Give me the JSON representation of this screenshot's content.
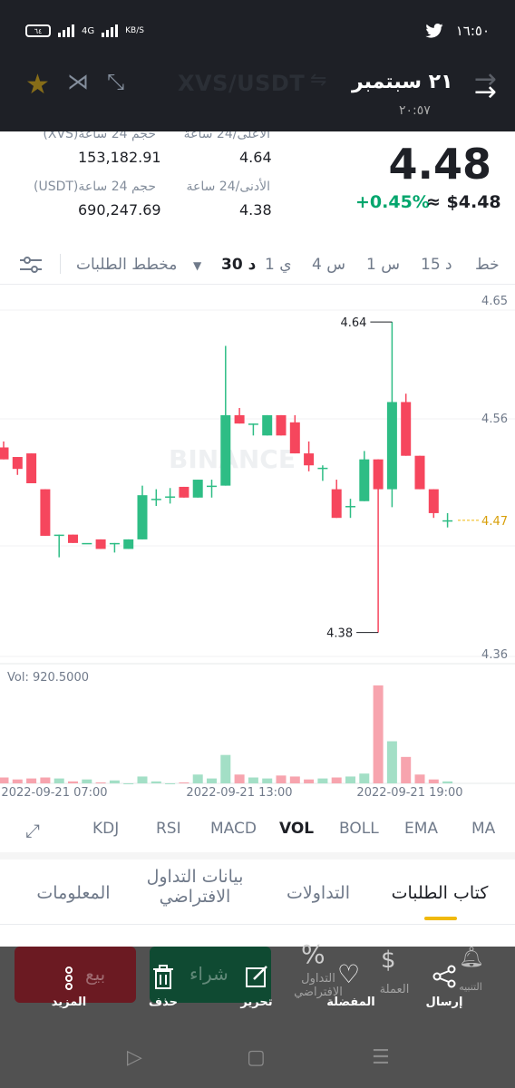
{
  "status_bar": {
    "battery": "٦٤",
    "network": "4G",
    "speed_unit": "KB/S",
    "time": "١٦:٥٠"
  },
  "header": {
    "pair": "XVS/USDT",
    "date": "٢١ سبتمبر",
    "time": "٢٠:٥٧"
  },
  "stats": {
    "high_label": "الأعلى/24 ساعة",
    "high_value": "4.64",
    "low_label": "الأدنى/24 ساعة",
    "low_value": "4.38",
    "vol_xvs_label": "حجم 24 ساعة(XVS)",
    "vol_xvs_value": "153,182.91",
    "vol_usdt_label": "حجم 24 ساعة(USDT)",
    "vol_usdt_value": "690,247.69",
    "price": "4.48",
    "change": "+0.45%",
    "usd_value": "≈ $4.48"
  },
  "interval_tabs": {
    "line": "خط",
    "m15": "15 د",
    "h1": "1 س",
    "h4": "4 س",
    "d1": "1 ي",
    "m30": "30 د",
    "depth": "مخطط الطلبات"
  },
  "chart_data": {
    "type": "candlestick",
    "y_ticks": [
      "4.65",
      "4.56",
      "4.47",
      "4.36"
    ],
    "current_price_label": "4.47",
    "high_marker": "4.64",
    "low_marker": "4.38",
    "x_ticks": [
      "2022-09-21 07:00",
      "2022-09-21 13:00",
      "2022-09-21 19:00"
    ],
    "volume_label": "Vol: 920.5000",
    "watermark": "BINANCE",
    "colors": {
      "up": "#2ebd85",
      "down": "#f6465d",
      "vol_up": "#a3dfc6",
      "vol_down": "#f7a4ae"
    },
    "candles": [
      {
        "o": 4.535,
        "c": 4.525,
        "h": 4.54,
        "l": 4.525
      },
      {
        "o": 4.527,
        "c": 4.517,
        "h": 4.527,
        "l": 4.512
      },
      {
        "o": 4.53,
        "c": 4.505,
        "h": 4.53,
        "l": 4.505
      },
      {
        "o": 4.5,
        "c": 4.461,
        "h": 4.5,
        "l": 4.461
      },
      {
        "o": 4.462,
        "c": 4.462,
        "h": 4.462,
        "l": 4.443
      },
      {
        "o": 4.462,
        "c": 4.455,
        "h": 4.462,
        "l": 4.455
      },
      {
        "o": 4.455,
        "c": 4.455,
        "h": 4.455,
        "l": 4.455
      },
      {
        "o": 4.458,
        "c": 4.45,
        "h": 4.458,
        "l": 4.45
      },
      {
        "o": 4.455,
        "c": 4.455,
        "h": 4.455,
        "l": 4.447
      },
      {
        "o": 4.45,
        "c": 4.458,
        "h": 4.458,
        "l": 4.45
      },
      {
        "o": 4.458,
        "c": 4.495,
        "h": 4.503,
        "l": 4.458
      },
      {
        "o": 4.492,
        "c": 4.492,
        "h": 4.5,
        "l": 4.486
      },
      {
        "o": 4.494,
        "c": 4.494,
        "h": 4.501,
        "l": 4.488
      },
      {
        "o": 4.502,
        "c": 4.493,
        "h": 4.502,
        "l": 4.493
      },
      {
        "o": 4.493,
        "c": 4.508,
        "h": 4.508,
        "l": 4.493
      },
      {
        "o": 4.503,
        "c": 4.503,
        "h": 4.508,
        "l": 4.493
      },
      {
        "o": 4.503,
        "c": 4.562,
        "h": 4.62,
        "l": 4.503
      },
      {
        "o": 4.562,
        "c": 4.555,
        "h": 4.568,
        "l": 4.555
      },
      {
        "o": 4.555,
        "c": 4.555,
        "h": 4.555,
        "l": 4.545
      },
      {
        "o": 4.545,
        "c": 4.562,
        "h": 4.562,
        "l": 4.545
      },
      {
        "o": 4.562,
        "c": 4.545,
        "h": 4.562,
        "l": 4.545
      },
      {
        "o": 4.556,
        "c": 4.53,
        "h": 4.562,
        "l": 4.53
      },
      {
        "o": 4.53,
        "c": 4.52,
        "h": 4.54,
        "l": 4.515
      },
      {
        "o": 4.518,
        "c": 4.518,
        "h": 4.52,
        "l": 4.507
      },
      {
        "o": 4.5,
        "c": 4.476,
        "h": 4.508,
        "l": 4.476
      },
      {
        "o": 4.486,
        "c": 4.486,
        "h": 4.492,
        "l": 4.476
      },
      {
        "o": 4.49,
        "c": 4.525,
        "h": 4.532,
        "l": 4.49
      },
      {
        "o": 4.525,
        "c": 4.5,
        "h": 4.525,
        "l": 4.38
      },
      {
        "o": 4.5,
        "c": 4.573,
        "h": 4.64,
        "l": 4.485
      },
      {
        "o": 4.573,
        "c": 4.528,
        "h": 4.58,
        "l": 4.528
      },
      {
        "o": 4.528,
        "c": 4.5,
        "h": 4.528,
        "l": 4.5
      },
      {
        "o": 4.5,
        "c": 4.48,
        "h": 4.5,
        "l": 4.476
      },
      {
        "o": 4.474,
        "c": 4.474,
        "h": 4.48,
        "l": 4.468
      }
    ],
    "volumes": [
      0.06,
      0.04,
      0.05,
      0.06,
      0.05,
      0.02,
      0.04,
      0.01,
      0.03,
      0.0,
      0.07,
      0.02,
      0.0,
      0.01,
      0.09,
      0.05,
      0.29,
      0.09,
      0.06,
      0.05,
      0.08,
      0.07,
      0.04,
      0.05,
      0.06,
      0.07,
      0.1,
      1.0,
      0.43,
      0.27,
      0.09,
      0.04,
      0.02
    ]
  },
  "indicators": {
    "ma": "MA",
    "ema": "EMA",
    "boll": "BOLL",
    "vol": "VOL",
    "macd": "MACD",
    "rsi": "RSI",
    "kdj": "KDJ"
  },
  "section_tabs": {
    "orderbook": "كتاب الطلبات",
    "trades": "التداولات",
    "virtual_line1": "بيانات التداول",
    "virtual_line2": "الافتراضي",
    "info": "المعلومات"
  },
  "bottom_bar": {
    "share": "إرسال",
    "coin": "العملة",
    "alert": "التنبيه",
    "favorite": "المفضلة",
    "virtual_line1": "التداول",
    "virtual_line2": "الافتراضي",
    "edit": "تحرير",
    "delete": "حذف",
    "more": "المزيد",
    "buy": "شراء",
    "sell": "بيع"
  }
}
